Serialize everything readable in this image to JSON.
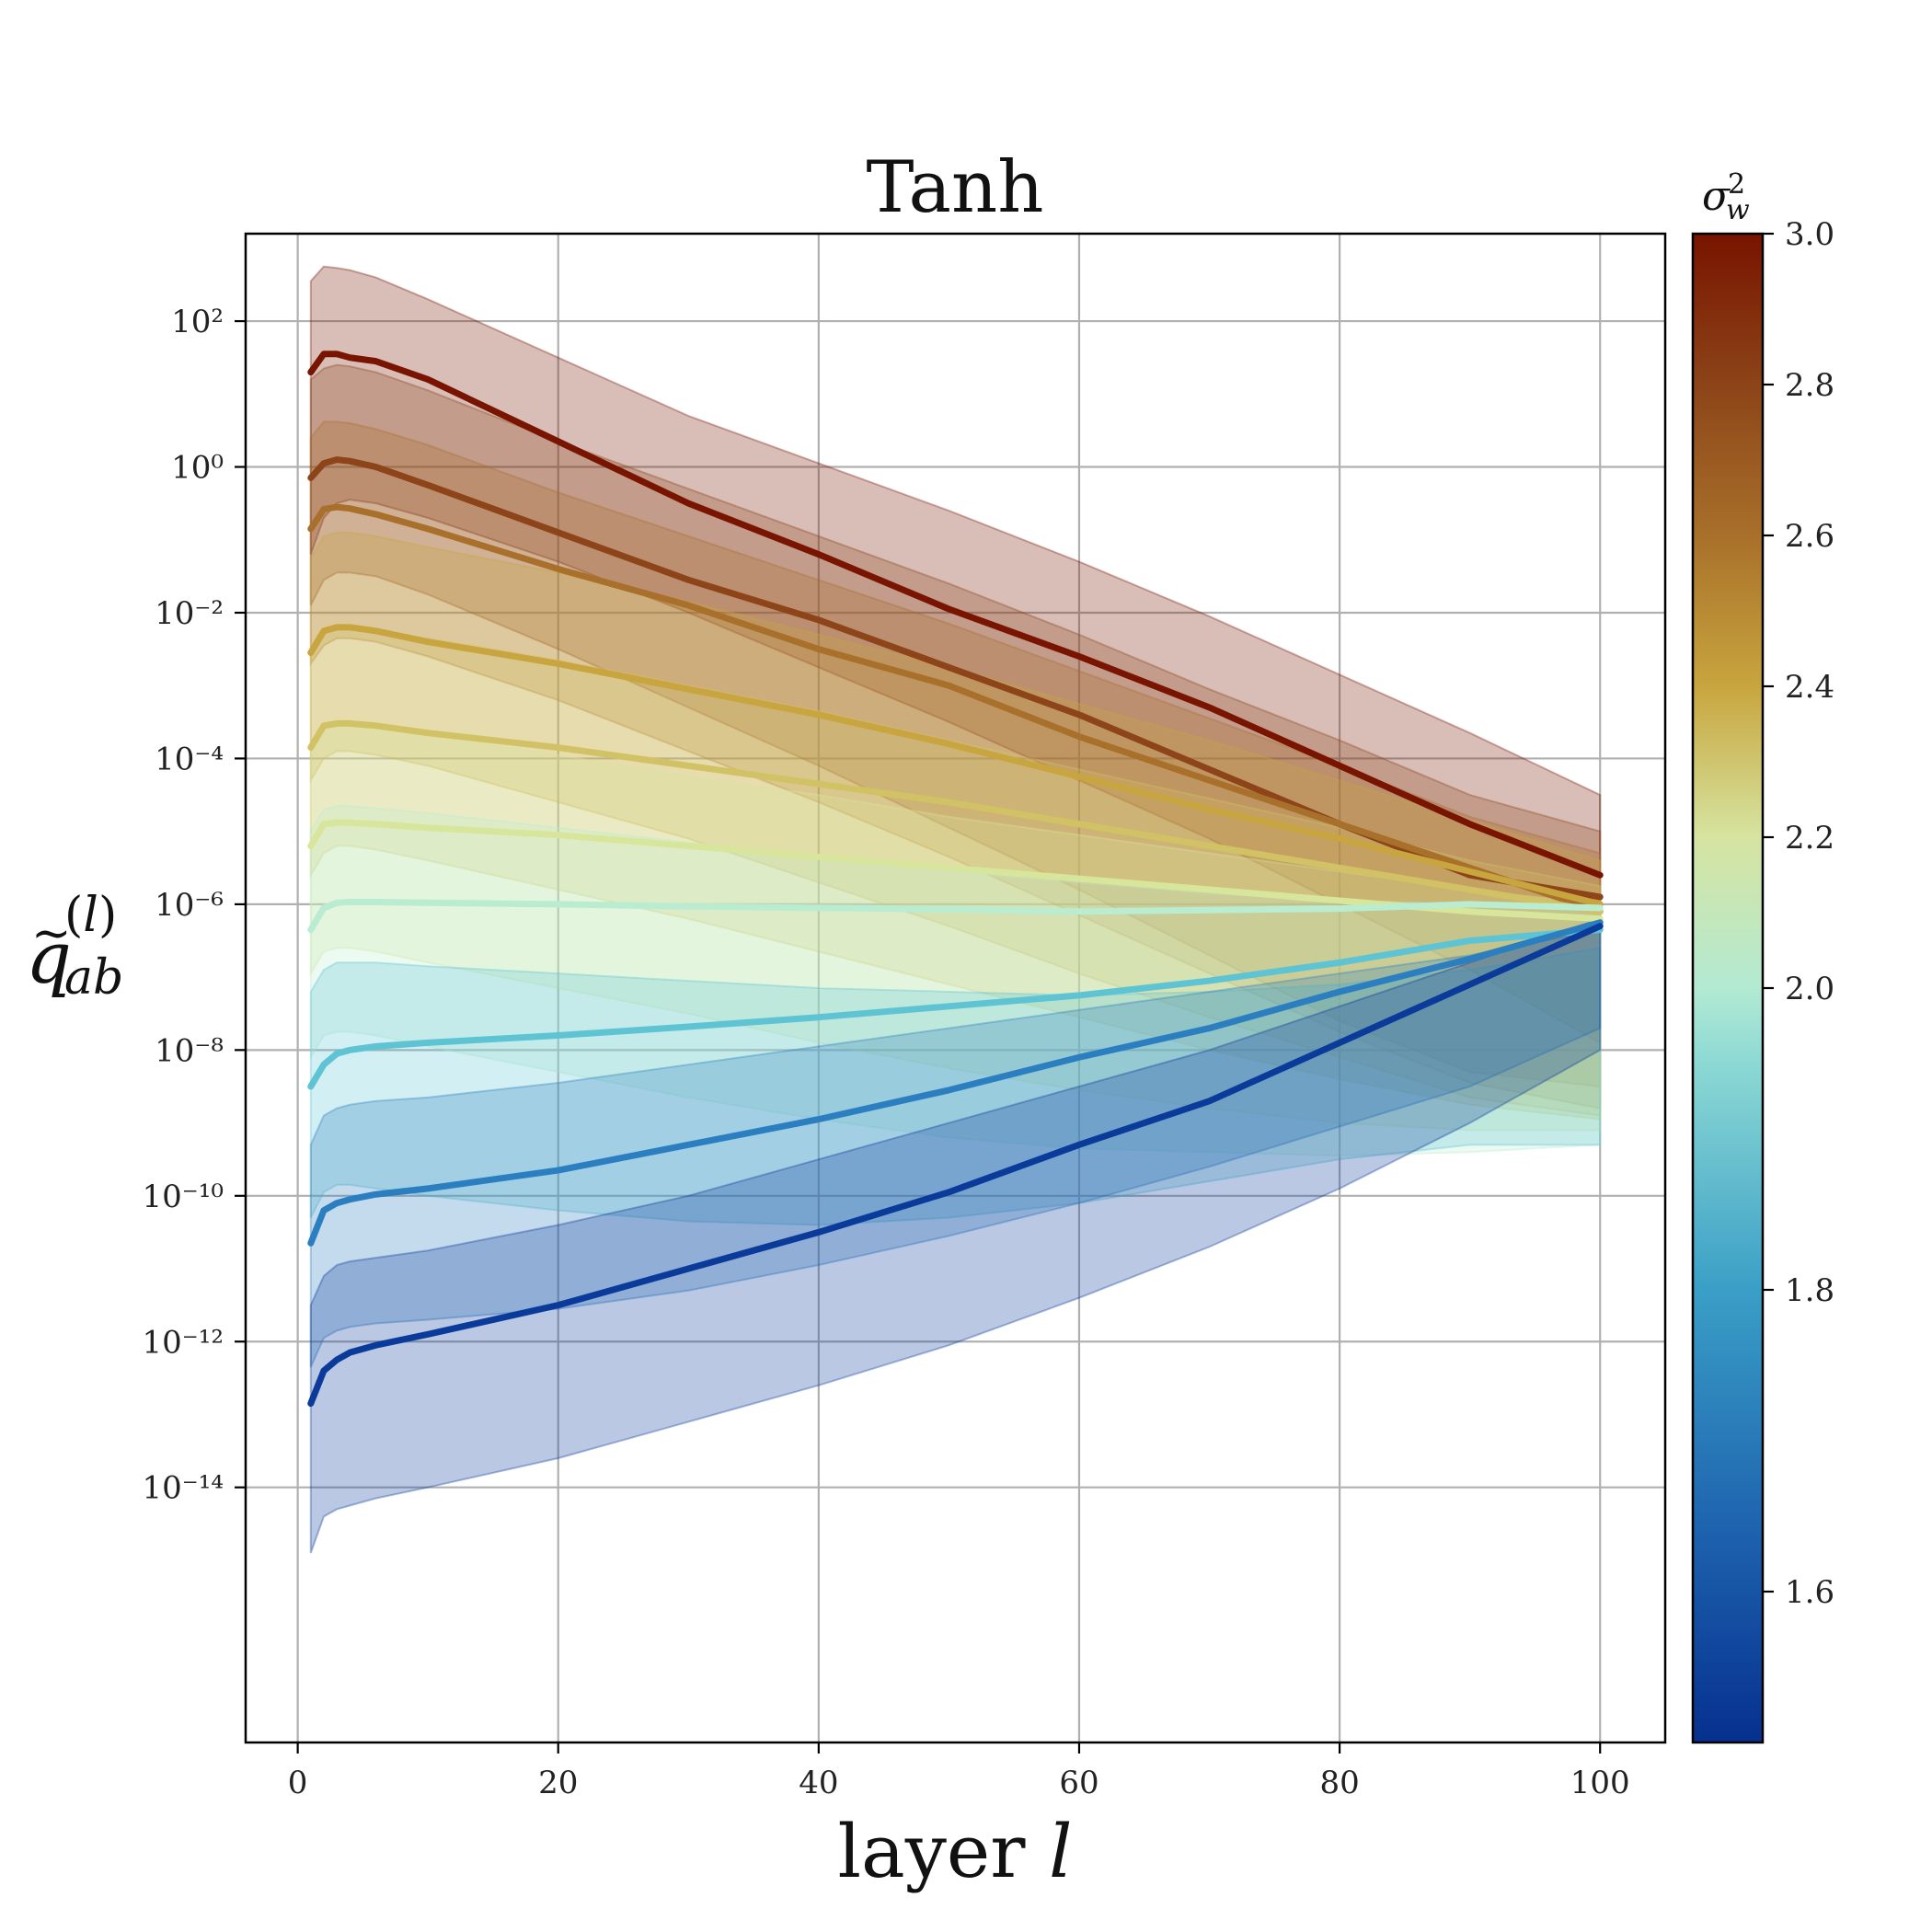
{
  "chart_data": {
    "type": "line",
    "title": "Tanh",
    "xlabel": "layer l",
    "ylabel": "q̃_ab^(l)",
    "xlim": [
      -4,
      105
    ],
    "ylim": [
      -17.5,
      3.2
    ],
    "x_ticks": [
      0,
      20,
      40,
      60,
      80,
      100
    ],
    "x_tick_labels": [
      "0",
      "20",
      "40",
      "60",
      "80",
      "100"
    ],
    "y_ticks": [
      2,
      0,
      -2,
      -4,
      -6,
      -8,
      -10,
      -12,
      -14
    ],
    "y_tick_labels": [
      "10²",
      "10⁰",
      "10⁻²",
      "10⁻⁴",
      "10⁻⁶",
      "10⁻⁸",
      "10⁻¹⁰",
      "10⁻¹²",
      "10⁻¹⁴"
    ],
    "y_scale": "log",
    "grid": true,
    "colorbar": {
      "label": "σ_w²",
      "min": 1.5,
      "max": 3.0,
      "ticks": [
        1.6,
        1.8,
        2.0,
        2.2,
        2.4,
        2.6,
        2.8,
        3.0
      ],
      "tick_labels": [
        "1.6",
        "1.8",
        "2.0",
        "2.2",
        "2.4",
        "2.6",
        "2.8",
        "3.0"
      ],
      "tick_fractions": [
        0.1,
        0.3,
        0.5,
        0.6,
        0.7,
        0.8,
        0.9,
        1.0
      ],
      "stops": [
        {
          "f": 0.0,
          "color": "#06308f"
        },
        {
          "f": 0.15,
          "color": "#1f66b0"
        },
        {
          "f": 0.3,
          "color": "#3a9fc6"
        },
        {
          "f": 0.45,
          "color": "#8cd9d4"
        },
        {
          "f": 0.5,
          "color": "#b3ead3"
        },
        {
          "f": 0.6,
          "color": "#d6e4a0"
        },
        {
          "f": 0.7,
          "color": "#c8a53e"
        },
        {
          "f": 0.8,
          "color": "#a8702a"
        },
        {
          "f": 0.9,
          "color": "#8c4418"
        },
        {
          "f": 1.0,
          "color": "#781400"
        }
      ]
    },
    "series": [
      {
        "color": "#781400",
        "x": [
          1,
          2,
          3,
          4,
          6,
          10,
          20,
          30,
          40,
          50,
          60,
          70,
          80,
          90,
          100
        ],
        "y": [
          1.3,
          1.55,
          1.55,
          1.5,
          1.45,
          1.2,
          0.35,
          -0.5,
          -1.2,
          -1.95,
          -2.6,
          -3.3,
          -4.1,
          -4.9,
          -5.6
        ],
        "upper": [
          2.55,
          2.75,
          2.73,
          2.7,
          2.6,
          2.3,
          1.5,
          0.7,
          0.05,
          -0.6,
          -1.3,
          -2.05,
          -2.85,
          -3.65,
          -4.5
        ],
        "lower": [
          -1.2,
          -0.7,
          -0.5,
          -0.45,
          -0.5,
          -0.7,
          -1.3,
          -2.0,
          -2.75,
          -3.5,
          -4.3,
          -5.1,
          -6.0,
          -6.9,
          -7.9
        ]
      },
      {
        "color": "#8c4418",
        "x": [
          1,
          2,
          3,
          4,
          6,
          10,
          20,
          30,
          40,
          50,
          60,
          70,
          80,
          90,
          100
        ],
        "y": [
          -0.15,
          0.05,
          0.1,
          0.08,
          0.0,
          -0.25,
          -0.9,
          -1.55,
          -2.1,
          -2.75,
          -3.4,
          -4.15,
          -4.9,
          -5.6,
          -5.9
        ],
        "upper": [
          1.2,
          1.35,
          1.4,
          1.38,
          1.3,
          1.05,
          0.35,
          -0.3,
          -0.95,
          -1.6,
          -2.3,
          -3.05,
          -3.75,
          -4.5,
          -5.0
        ],
        "lower": [
          -1.9,
          -1.55,
          -1.45,
          -1.45,
          -1.5,
          -1.75,
          -2.5,
          -3.3,
          -4.1,
          -4.95,
          -5.8,
          -6.7,
          -7.6,
          -8.3,
          -8.5
        ]
      },
      {
        "color": "#a8702a",
        "x": [
          1,
          2,
          3,
          4,
          6,
          10,
          20,
          30,
          40,
          50,
          60,
          70,
          80,
          90,
          100
        ],
        "y": [
          -0.85,
          -0.58,
          -0.55,
          -0.57,
          -0.65,
          -0.85,
          -1.4,
          -1.9,
          -2.5,
          -3.0,
          -3.7,
          -4.3,
          -4.9,
          -5.5,
          -6.1
        ],
        "upper": [
          0.4,
          0.62,
          0.62,
          0.6,
          0.52,
          0.3,
          -0.35,
          -0.95,
          -1.55,
          -2.15,
          -2.8,
          -3.45,
          -4.1,
          -4.8,
          -5.3
        ],
        "lower": [
          -2.7,
          -2.45,
          -2.35,
          -2.35,
          -2.4,
          -2.6,
          -3.2,
          -3.9,
          -4.6,
          -5.35,
          -6.15,
          -6.95,
          -7.75,
          -8.45,
          -8.8
        ]
      },
      {
        "color": "#c8a53e",
        "x": [
          1,
          2,
          3,
          4,
          6,
          10,
          20,
          30,
          40,
          50,
          60,
          70,
          80,
          90,
          100
        ],
        "y": [
          -2.55,
          -2.25,
          -2.2,
          -2.2,
          -2.25,
          -2.4,
          -2.7,
          -3.05,
          -3.4,
          -3.8,
          -4.25,
          -4.7,
          -5.1,
          -5.55,
          -6.0
        ],
        "upper": [
          -1.25,
          -0.95,
          -0.9,
          -0.9,
          -0.95,
          -1.1,
          -1.45,
          -1.85,
          -2.3,
          -2.75,
          -3.25,
          -3.75,
          -4.3,
          -4.85,
          -5.4
        ],
        "lower": [
          -4.3,
          -4.0,
          -3.9,
          -3.9,
          -3.95,
          -4.1,
          -4.6,
          -5.1,
          -5.7,
          -6.3,
          -6.95,
          -7.55,
          -8.1,
          -8.65,
          -8.9
        ]
      },
      {
        "color": "#d2c266",
        "x": [
          1,
          2,
          3,
          4,
          6,
          10,
          20,
          30,
          40,
          50,
          60,
          70,
          80,
          90,
          100
        ],
        "y": [
          -3.85,
          -3.55,
          -3.52,
          -3.52,
          -3.55,
          -3.65,
          -3.85,
          -4.1,
          -4.35,
          -4.6,
          -4.9,
          -5.2,
          -5.5,
          -5.8,
          -6.1
        ],
        "upper": [
          -2.55,
          -2.25,
          -2.2,
          -2.2,
          -2.25,
          -2.35,
          -2.65,
          -3.0,
          -3.35,
          -3.75,
          -4.15,
          -4.55,
          -4.95,
          -5.4,
          -5.75
        ],
        "lower": [
          -5.6,
          -5.3,
          -5.2,
          -5.2,
          -5.25,
          -5.4,
          -5.8,
          -6.2,
          -6.65,
          -7.1,
          -7.55,
          -8.0,
          -8.4,
          -8.75,
          -8.95
        ]
      },
      {
        "color": "#d8e69c",
        "x": [
          1,
          2,
          3,
          4,
          6,
          10,
          20,
          30,
          40,
          50,
          60,
          70,
          80,
          90,
          100
        ],
        "y": [
          -5.2,
          -4.9,
          -4.88,
          -4.88,
          -4.9,
          -4.95,
          -5.05,
          -5.2,
          -5.35,
          -5.5,
          -5.65,
          -5.8,
          -5.95,
          -6.1,
          -6.2
        ],
        "upper": [
          -3.9,
          -3.6,
          -3.55,
          -3.55,
          -3.6,
          -3.7,
          -3.95,
          -4.25,
          -4.5,
          -4.8,
          -5.05,
          -5.3,
          -5.55,
          -5.8,
          -6.0
        ],
        "lower": [
          -6.95,
          -6.65,
          -6.6,
          -6.6,
          -6.65,
          -6.8,
          -7.15,
          -7.5,
          -7.9,
          -8.25,
          -8.55,
          -8.8,
          -9.0,
          -9.1,
          -9.1
        ]
      },
      {
        "color": "#b9ecd0",
        "x": [
          1,
          2,
          3,
          4,
          6,
          10,
          20,
          30,
          40,
          50,
          60,
          70,
          80,
          90,
          100
        ],
        "y": [
          -6.35,
          -6.05,
          -5.98,
          -5.97,
          -5.97,
          -5.98,
          -6.0,
          -6.03,
          -6.05,
          -6.07,
          -6.1,
          -6.08,
          -6.06,
          -6.0,
          -6.05
        ],
        "upper": [
          -5.0,
          -4.7,
          -4.65,
          -4.65,
          -4.68,
          -4.75,
          -4.95,
          -5.15,
          -5.35,
          -5.55,
          -5.7,
          -5.85,
          -5.95,
          -6.0,
          -6.0
        ],
        "lower": [
          -8.1,
          -7.8,
          -7.75,
          -7.75,
          -7.8,
          -7.95,
          -8.3,
          -8.65,
          -8.95,
          -9.2,
          -9.35,
          -9.4,
          -9.45,
          -9.4,
          -9.3
        ]
      },
      {
        "color": "#5ec4d4",
        "x": [
          1,
          2,
          3,
          4,
          6,
          10,
          20,
          30,
          40,
          50,
          60,
          70,
          80,
          90,
          100
        ],
        "y": [
          -8.5,
          -8.2,
          -8.05,
          -8.0,
          -7.95,
          -7.9,
          -7.8,
          -7.68,
          -7.55,
          -7.4,
          -7.25,
          -7.05,
          -6.8,
          -6.5,
          -6.35
        ],
        "upper": [
          -7.2,
          -6.9,
          -6.8,
          -6.8,
          -6.8,
          -6.85,
          -6.95,
          -7.05,
          -7.15,
          -7.2,
          -7.25,
          -7.2,
          -7.1,
          -6.9,
          -6.6
        ],
        "lower": [
          -10.3,
          -9.95,
          -9.85,
          -9.85,
          -9.9,
          -10.0,
          -10.2,
          -10.35,
          -10.4,
          -10.3,
          -10.1,
          -9.8,
          -9.5,
          -9.3,
          -9.3
        ]
      },
      {
        "color": "#2b7fc0",
        "x": [
          1,
          2,
          3,
          4,
          6,
          10,
          20,
          30,
          40,
          50,
          60,
          70,
          80,
          90,
          100
        ],
        "y": [
          -10.65,
          -10.2,
          -10.1,
          -10.05,
          -9.98,
          -9.9,
          -9.65,
          -9.3,
          -8.95,
          -8.55,
          -8.1,
          -7.7,
          -7.2,
          -6.75,
          -6.25
        ],
        "upper": [
          -9.3,
          -8.9,
          -8.8,
          -8.75,
          -8.7,
          -8.65,
          -8.45,
          -8.2,
          -7.95,
          -7.7,
          -7.45,
          -7.2,
          -6.95,
          -6.7,
          -6.35
        ],
        "lower": [
          -12.35,
          -11.95,
          -11.85,
          -11.8,
          -11.75,
          -11.7,
          -11.55,
          -11.3,
          -10.95,
          -10.55,
          -10.1,
          -9.6,
          -9.05,
          -8.5,
          -7.7
        ]
      },
      {
        "color": "#0a3a9a",
        "x": [
          1,
          2,
          3,
          4,
          6,
          10,
          20,
          30,
          40,
          50,
          60,
          70,
          80,
          90,
          100
        ],
        "y": [
          -12.85,
          -12.4,
          -12.25,
          -12.15,
          -12.05,
          -11.9,
          -11.5,
          -11.0,
          -10.5,
          -9.95,
          -9.3,
          -8.7,
          -7.9,
          -7.1,
          -6.3
        ],
        "upper": [
          -11.5,
          -11.1,
          -10.95,
          -10.9,
          -10.85,
          -10.75,
          -10.4,
          -10.0,
          -9.5,
          -9.0,
          -8.5,
          -8.0,
          -7.4,
          -6.8,
          -6.2
        ],
        "lower": [
          -14.9,
          -14.4,
          -14.3,
          -14.25,
          -14.15,
          -14.0,
          -13.6,
          -13.1,
          -12.6,
          -12.05,
          -11.4,
          -10.7,
          -9.9,
          -9.0,
          -8.0
        ]
      }
    ]
  }
}
